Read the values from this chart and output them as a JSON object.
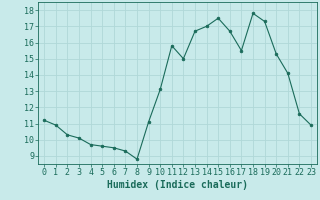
{
  "x": [
    0,
    1,
    2,
    3,
    4,
    5,
    6,
    7,
    8,
    9,
    10,
    11,
    12,
    13,
    14,
    15,
    16,
    17,
    18,
    19,
    20,
    21,
    22,
    23
  ],
  "y": [
    11.2,
    10.9,
    10.3,
    10.1,
    9.7,
    9.6,
    9.5,
    9.3,
    8.8,
    11.1,
    13.1,
    15.8,
    15.0,
    16.7,
    17.0,
    17.5,
    16.7,
    15.5,
    17.8,
    17.3,
    15.3,
    14.1,
    11.6,
    10.9
  ],
  "xlabel": "Humidex (Indice chaleur)",
  "ylim": [
    8.5,
    18.5
  ],
  "xlim": [
    -0.5,
    23.5
  ],
  "yticks": [
    9,
    10,
    11,
    12,
    13,
    14,
    15,
    16,
    17,
    18
  ],
  "xticks": [
    0,
    1,
    2,
    3,
    4,
    5,
    6,
    7,
    8,
    9,
    10,
    11,
    12,
    13,
    14,
    15,
    16,
    17,
    18,
    19,
    20,
    21,
    22,
    23
  ],
  "line_color": "#1a6b5a",
  "marker": "o",
  "marker_size": 2,
  "bg_color": "#c8eaea",
  "grid_color": "#b0d8d8",
  "label_color": "#1a6b5a",
  "tick_color": "#1a6b5a",
  "font_size": 6,
  "xlabel_fontsize": 7
}
